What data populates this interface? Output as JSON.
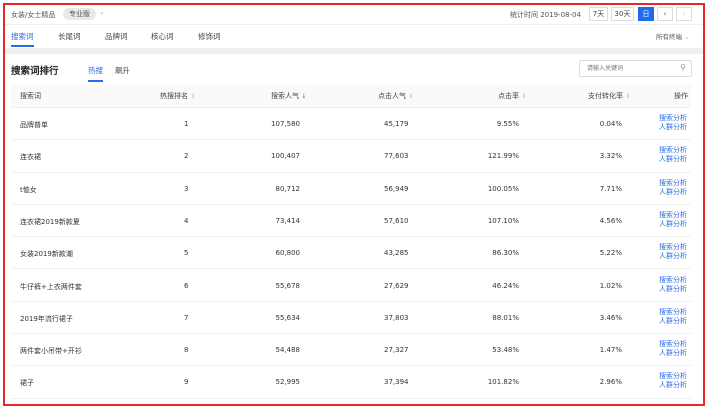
{
  "topbar": {
    "category": "女装/女士精品",
    "edition": "专业版",
    "stat_label": "统计时间 2019-08-04",
    "btn_7": "7天",
    "btn_30": "30天",
    "btn_day": "日"
  },
  "tabs": [
    {
      "label": "搜索词",
      "active": true
    },
    {
      "label": "长尾词"
    },
    {
      "label": "品牌词"
    },
    {
      "label": "核心词"
    },
    {
      "label": "修饰词"
    }
  ],
  "terminal": "所有终端",
  "section": {
    "title": "搜索词排行",
    "subtabs": [
      {
        "label": "热搜",
        "active": true
      },
      {
        "label": "飙升"
      }
    ],
    "search_placeholder": "请输入关键词"
  },
  "columns": [
    "搜索词",
    "热搜排名",
    "搜索人气",
    "点击人气",
    "点击率",
    "支付转化率",
    "操作"
  ],
  "actions": [
    "搜索分析",
    "人群分析"
  ],
  "rows": [
    [
      "品牌普单",
      "1",
      "107,580",
      "45,179",
      "9.55%",
      "0.04%"
    ],
    [
      "连衣裙",
      "2",
      "100,407",
      "77,603",
      "121.99%",
      "3.32%"
    ],
    [
      "t恤女",
      "3",
      "80,712",
      "56,949",
      "100.05%",
      "7.71%"
    ],
    [
      "连衣裙2019新款夏",
      "4",
      "73,414",
      "57,610",
      "107.10%",
      "4.56%"
    ],
    [
      "女装2019新款潮",
      "5",
      "60,800",
      "43,285",
      "86.30%",
      "5.22%"
    ],
    [
      "牛仔裤+上衣两件套",
      "6",
      "55,678",
      "27,629",
      "46.24%",
      "1.02%"
    ],
    [
      "2019年流行裙子",
      "7",
      "55,634",
      "37,803",
      "88.01%",
      "3.46%"
    ],
    [
      "两件套小吊带+开衫",
      "8",
      "54,488",
      "27,327",
      "53.48%",
      "1.47%"
    ],
    [
      "裙子",
      "9",
      "52,995",
      "37,394",
      "101.82%",
      "2.96%"
    ]
  ],
  "colors": {
    "accent": "#2b6ce5",
    "frame": "#e8272a"
  }
}
